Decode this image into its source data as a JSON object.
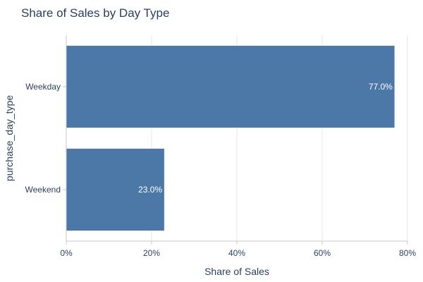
{
  "chart_data": {
    "type": "bar",
    "orientation": "horizontal",
    "title": "Share of Sales by Day Type",
    "xlabel": "Share of Sales",
    "ylabel": "purchase_day_type",
    "categories": [
      "Weekday",
      "Weekend"
    ],
    "values": [
      0.77,
      0.23
    ],
    "data_labels": [
      "77.0%",
      "23.0%"
    ],
    "xlim": [
      0,
      0.8
    ],
    "xticks": [
      0,
      0.2,
      0.4,
      0.6,
      0.8
    ],
    "xtick_labels": [
      "0%",
      "20%",
      "40%",
      "60%",
      "80%"
    ],
    "grid": true,
    "legend": "none",
    "bar_color": "#4c78a8",
    "text_color": "#2a3f5f",
    "label_color": "#ffffff",
    "grid_color": "#e5e5e5",
    "axis_color": "#c8c8c8"
  }
}
